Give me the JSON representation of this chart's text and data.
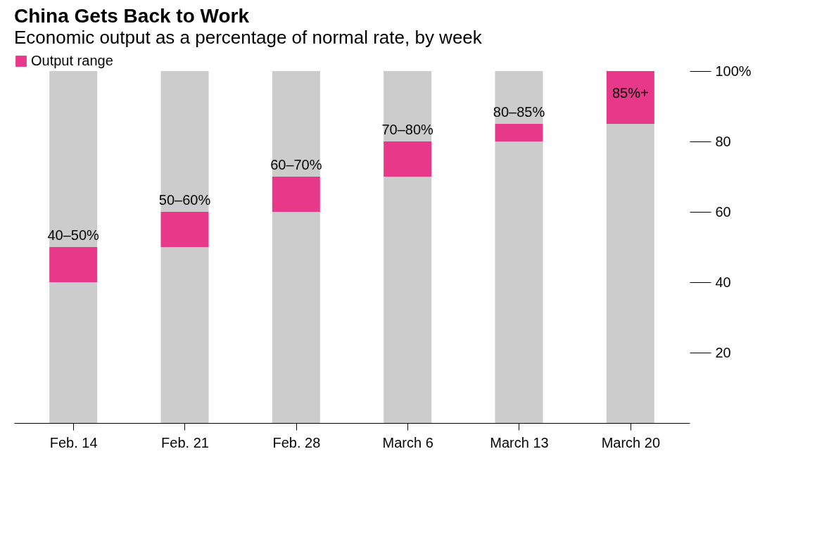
{
  "chart_data": {
    "type": "bar",
    "stacked": true,
    "title": "China Gets Back to Work",
    "subtitle": "Economic output as a percentage of normal rate, by week",
    "categories": [
      "Feb. 14",
      "Feb. 21",
      "Feb. 28",
      "March 6",
      "March 13",
      "March 20"
    ],
    "series": [
      {
        "color": "#cccccc",
        "values": [
          40,
          50,
          60,
          70,
          80,
          85
        ]
      },
      {
        "name": "Output range",
        "color": "#e8388a",
        "values": [
          10,
          10,
          10,
          10,
          5,
          15
        ]
      },
      {
        "color": "#cccccc",
        "values": [
          50,
          40,
          30,
          20,
          15,
          0
        ]
      }
    ],
    "annotations": [
      {
        "text": "40–50%",
        "x": "Feb. 14",
        "y": 50
      },
      {
        "text": "50–60%",
        "x": "Feb. 21",
        "y": 60
      },
      {
        "text": "60–70%",
        "x": "Feb. 28",
        "y": 70
      },
      {
        "text": "70–80%",
        "x": "March 6",
        "y": 80
      },
      {
        "text": "80–85%",
        "x": "March 13",
        "y": 85
      },
      {
        "text": "85%+",
        "x": "March 20",
        "y": 100
      }
    ],
    "ylim": [
      0,
      100
    ],
    "yticks": [
      20,
      40,
      60,
      80,
      {
        "value": 100,
        "label": "100%"
      }
    ],
    "grid": false,
    "legend": "top left"
  }
}
